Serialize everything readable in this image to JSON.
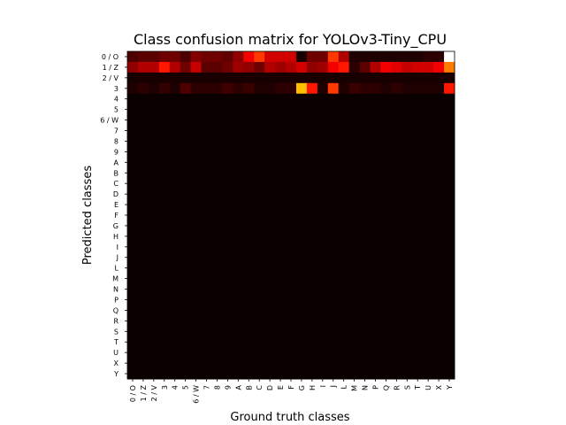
{
  "chart_data": {
    "type": "heatmap",
    "title": "Class confusion matrix for YOLOv3-Tiny_CPU",
    "xlabel": "Ground truth classes",
    "ylabel": "Predicted classes",
    "colormap": "hot",
    "value_range": [
      0,
      1
    ],
    "x_categories": [
      "0 / O",
      "1 / Z",
      "2 / V",
      "3",
      "4",
      "5",
      "6 / W",
      "7",
      "8",
      "9",
      "A",
      "B",
      "C",
      "D",
      "E",
      "F",
      "G",
      "H",
      "I",
      "J",
      "L",
      "M",
      "N",
      "P",
      "Q",
      "R",
      "S",
      "T",
      "U",
      "X",
      "Y"
    ],
    "y_categories": [
      "0 / O",
      "1 / Z",
      "2 / V",
      "3",
      "4",
      "5",
      "6 / W",
      "7",
      "8",
      "9",
      "A",
      "B",
      "C",
      "D",
      "E",
      "F",
      "G",
      "H",
      "I",
      "J",
      "L",
      "M",
      "N",
      "P",
      "Q",
      "R",
      "S",
      "T",
      "U",
      "X",
      "Y"
    ],
    "values": {
      "0 / O": [
        0.1,
        0.12,
        0.12,
        0.15,
        0.15,
        0.1,
        0.18,
        0.15,
        0.15,
        0.13,
        0.2,
        0.35,
        0.45,
        0.3,
        0.3,
        0.3,
        0.02,
        0.15,
        0.15,
        0.45,
        0.25,
        0.03,
        0.03,
        0.03,
        0.03,
        0.03,
        0.03,
        0.03,
        0.05,
        0.05,
        1.0
      ],
      "1 / Z": [
        0.2,
        0.25,
        0.25,
        0.4,
        0.25,
        0.15,
        0.28,
        0.12,
        0.12,
        0.15,
        0.22,
        0.2,
        0.15,
        0.25,
        0.22,
        0.25,
        0.3,
        0.2,
        0.22,
        0.35,
        0.4,
        0.05,
        0.12,
        0.25,
        0.35,
        0.32,
        0.28,
        0.3,
        0.3,
        0.35,
        0.55
      ],
      "2 / V": [
        0.02,
        0.02,
        0.02,
        0.02,
        0.02,
        0.02,
        0.02,
        0.02,
        0.02,
        0.02,
        0.02,
        0.02,
        0.02,
        0.02,
        0.02,
        0.02,
        0.02,
        0.02,
        0.02,
        0.02,
        0.02,
        0.02,
        0.02,
        0.02,
        0.02,
        0.02,
        0.02,
        0.02,
        0.02,
        0.02,
        0.02
      ],
      "3": [
        0.03,
        0.05,
        0.03,
        0.06,
        0.03,
        0.1,
        0.05,
        0.05,
        0.05,
        0.08,
        0.05,
        0.07,
        0.03,
        0.03,
        0.05,
        0.05,
        0.65,
        0.4,
        0.03,
        0.45,
        0.03,
        0.07,
        0.05,
        0.05,
        0.03,
        0.05,
        0.03,
        0.03,
        0.03,
        0.03,
        0.4
      ]
    },
    "note_rows_all_zero": [
      "4",
      "5",
      "6 / W",
      "7",
      "8",
      "9",
      "A",
      "B",
      "C",
      "D",
      "E",
      "F",
      "G",
      "H",
      "I",
      "J",
      "L",
      "M",
      "N",
      "P",
      "Q",
      "R",
      "S",
      "T",
      "U",
      "X",
      "Y"
    ]
  }
}
